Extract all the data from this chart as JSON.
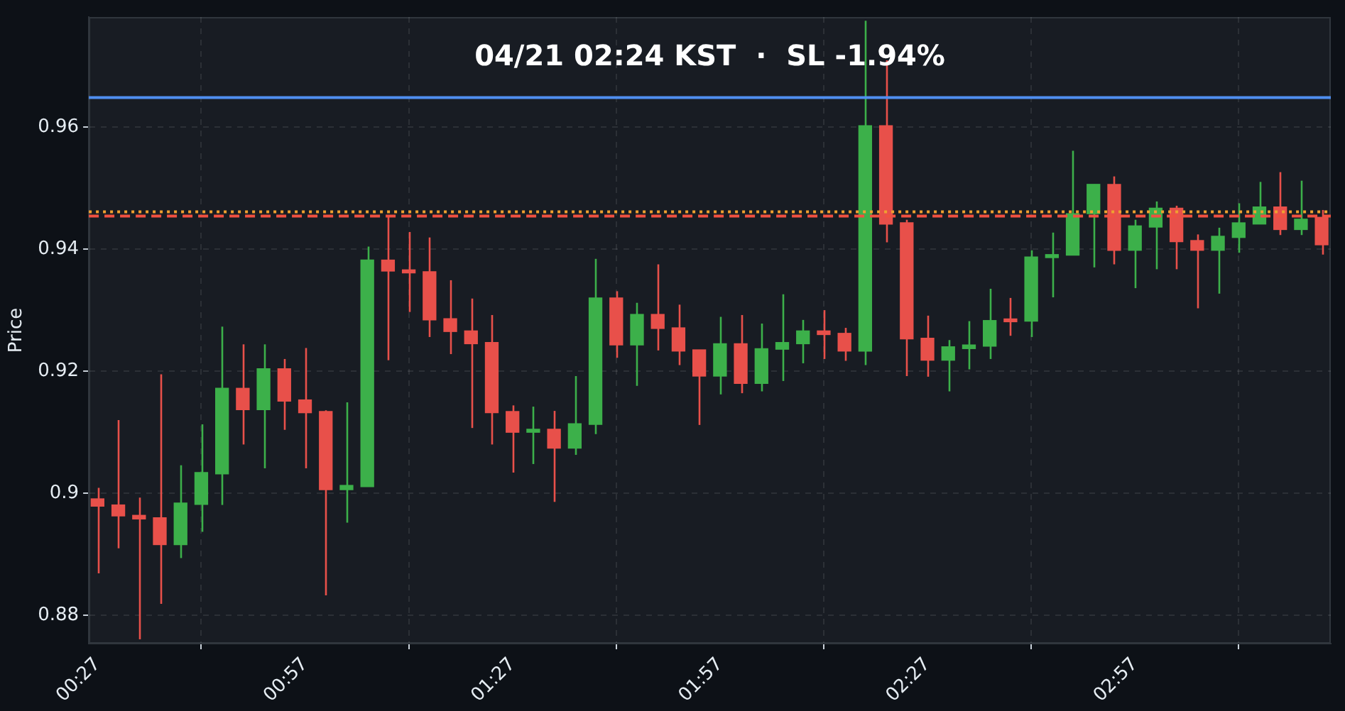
{
  "chart_data": {
    "type": "candlestick",
    "title": "04/21 02:24 KST  ·  SL -1.94%",
    "ylabel": "Price",
    "x": [
      0.45,
      0.5,
      0.55,
      0.6,
      0.65,
      0.7,
      0.75,
      0.8,
      0.85,
      0.9,
      0.95,
      1.0,
      1.05,
      1.1,
      1.15,
      1.2,
      1.25,
      1.3,
      1.35,
      1.4,
      1.45,
      1.5,
      1.55,
      1.6,
      1.65,
      1.7,
      1.75,
      1.8,
      1.85,
      1.9,
      1.95,
      2.0,
      2.05,
      2.1,
      2.15,
      2.2,
      2.25,
      2.3,
      2.35,
      2.4,
      2.45,
      2.5,
      2.55,
      2.6,
      2.65,
      2.7,
      2.75,
      2.8,
      2.85,
      2.9,
      2.95,
      3.0,
      3.05,
      3.1,
      3.15,
      3.2,
      3.25,
      3.3,
      3.35,
      3.4
    ],
    "ohlc": [
      [
        0.8991,
        0.9009,
        0.8869,
        0.8979
      ],
      [
        0.8981,
        0.912,
        0.891,
        0.8963
      ],
      [
        0.8964,
        0.8993,
        0.8761,
        0.8958
      ],
      [
        0.896,
        0.9195,
        0.8819,
        0.8916
      ],
      [
        0.8916,
        0.9046,
        0.8894,
        0.8984
      ],
      [
        0.8982,
        0.9113,
        0.8937,
        0.9034
      ],
      [
        0.9032,
        0.9273,
        0.8981,
        0.9172
      ],
      [
        0.9172,
        0.9244,
        0.908,
        0.9137
      ],
      [
        0.9137,
        0.9244,
        0.9041,
        0.9204
      ],
      [
        0.9204,
        0.922,
        0.9104,
        0.9151
      ],
      [
        0.9153,
        0.9238,
        0.9041,
        0.9132
      ],
      [
        0.9134,
        0.9136,
        0.8833,
        0.9006
      ],
      [
        0.9006,
        0.9149,
        0.8952,
        0.9013
      ],
      [
        0.9011,
        0.9404,
        0.9011,
        0.9382
      ],
      [
        0.9382,
        0.9455,
        0.9218,
        0.9364
      ],
      [
        0.9366,
        0.9428,
        0.9297,
        0.9361
      ],
      [
        0.9363,
        0.9419,
        0.9256,
        0.9284
      ],
      [
        0.9286,
        0.9349,
        0.9228,
        0.9265
      ],
      [
        0.9266,
        0.9319,
        0.9107,
        0.9245
      ],
      [
        0.9247,
        0.9292,
        0.908,
        0.9132
      ],
      [
        0.9134,
        0.9144,
        0.9034,
        0.91
      ],
      [
        0.91,
        0.9142,
        0.9048,
        0.9105
      ],
      [
        0.9105,
        0.9135,
        0.8986,
        0.9074
      ],
      [
        0.9074,
        0.9192,
        0.9063,
        0.9114
      ],
      [
        0.9113,
        0.9384,
        0.9097,
        0.932
      ],
      [
        0.932,
        0.9331,
        0.9222,
        0.9243
      ],
      [
        0.9243,
        0.9312,
        0.9176,
        0.9293
      ],
      [
        0.9293,
        0.9375,
        0.9234,
        0.927
      ],
      [
        0.9271,
        0.9309,
        0.921,
        0.9233
      ],
      [
        0.9235,
        0.9235,
        0.9112,
        0.9192
      ],
      [
        0.9192,
        0.9289,
        0.9162,
        0.9245
      ],
      [
        0.9245,
        0.9292,
        0.9164,
        0.918
      ],
      [
        0.918,
        0.9278,
        0.9167,
        0.9237
      ],
      [
        0.9236,
        0.9326,
        0.9184,
        0.9247
      ],
      [
        0.9245,
        0.9284,
        0.9213,
        0.9266
      ],
      [
        0.9266,
        0.93,
        0.922,
        0.926
      ],
      [
        0.9262,
        0.9271,
        0.9217,
        0.9233
      ],
      [
        0.9233,
        0.9774,
        0.921,
        0.9602
      ],
      [
        0.9602,
        0.9709,
        0.9411,
        0.9441
      ],
      [
        0.9443,
        0.9448,
        0.9192,
        0.9253
      ],
      [
        0.9254,
        0.9291,
        0.9191,
        0.9218
      ],
      [
        0.9218,
        0.9251,
        0.9167,
        0.924
      ],
      [
        0.9237,
        0.9282,
        0.9203,
        0.9243
      ],
      [
        0.9241,
        0.9335,
        0.922,
        0.9283
      ],
      [
        0.9283,
        0.932,
        0.9258,
        0.9281
      ],
      [
        0.9282,
        0.9398,
        0.9256,
        0.9387
      ],
      [
        0.9386,
        0.9427,
        0.9321,
        0.9391
      ],
      [
        0.939,
        0.9561,
        0.939,
        0.9458
      ],
      [
        0.9458,
        0.9506,
        0.937,
        0.9506
      ],
      [
        0.9506,
        0.9519,
        0.9375,
        0.9398
      ],
      [
        0.9398,
        0.9448,
        0.9336,
        0.9438
      ],
      [
        0.9436,
        0.9478,
        0.9367,
        0.9467
      ],
      [
        0.9467,
        0.9471,
        0.9367,
        0.9412
      ],
      [
        0.9414,
        0.9424,
        0.9303,
        0.9398
      ],
      [
        0.9398,
        0.9435,
        0.9327,
        0.9421
      ],
      [
        0.9419,
        0.9475,
        0.9394,
        0.9443
      ],
      [
        0.9441,
        0.951,
        0.9441,
        0.9469
      ],
      [
        0.9469,
        0.9526,
        0.9423,
        0.9432
      ],
      [
        0.9432,
        0.9512,
        0.9423,
        0.9449
      ],
      [
        0.9452,
        0.9464,
        0.9391,
        0.9407
      ]
    ],
    "colors": [
      "#e8504a",
      "#e8504a",
      "#e8504a",
      "#e8504a",
      "#3cb04a",
      "#3cb04a",
      "#3cb04a",
      "#e8504a",
      "#3cb04a",
      "#e8504a",
      "#e8504a",
      "#e8504a",
      "#3cb04a",
      "#3cb04a",
      "#e8504a",
      "#e8504a",
      "#e8504a",
      "#e8504a",
      "#e8504a",
      "#e8504a",
      "#e8504a",
      "#3cb04a",
      "#e8504a",
      "#3cb04a",
      "#3cb04a",
      "#e8504a",
      "#3cb04a",
      "#e8504a",
      "#e8504a",
      "#e8504a",
      "#3cb04a",
      "#e8504a",
      "#3cb04a",
      "#3cb04a",
      "#3cb04a",
      "#e8504a",
      "#e8504a",
      "#3cb04a",
      "#e8504a",
      "#e8504a",
      "#e8504a",
      "#3cb04a",
      "#3cb04a",
      "#3cb04a",
      "#e8504a",
      "#3cb04a",
      "#3cb04a",
      "#3cb04a",
      "#3cb04a",
      "#e8504a",
      "#3cb04a",
      "#3cb04a",
      "#e8504a",
      "#e8504a",
      "#3cb04a",
      "#3cb04a",
      "#3cb04a",
      "#e8504a",
      "#3cb04a",
      "#e8504a"
    ],
    "xlim": [
      0.429,
      3.422
    ],
    "xticks": [
      {
        "value": 0.45,
        "label": "00:27"
      },
      {
        "value": 0.95,
        "label": "00:57"
      },
      {
        "value": 1.45,
        "label": "01:27"
      },
      {
        "value": 1.95,
        "label": "01:57"
      },
      {
        "value": 2.45,
        "label": "02:27"
      },
      {
        "value": 2.95,
        "label": "02:57"
      }
    ],
    "ylim": [
      0.8754,
      0.978
    ],
    "yticks": [
      0.88,
      0.9,
      0.92,
      0.94,
      0.96
    ],
    "ref_lines": [
      {
        "axis": "y",
        "value": 0.9648,
        "color": "#4f8ef0",
        "line_style": "solid"
      },
      {
        "axis": "y",
        "value": 0.9461,
        "color": "#f0a030",
        "line_style": "dotted"
      },
      {
        "axis": "y",
        "value": 0.9454,
        "color": "#f05040",
        "line_style": "dashed"
      }
    ],
    "grid": true
  }
}
